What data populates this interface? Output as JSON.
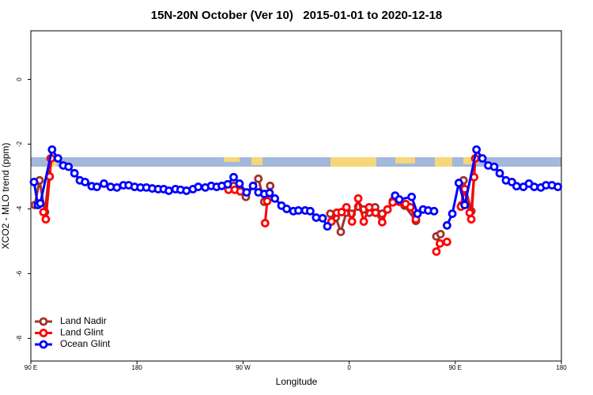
{
  "chart_data": {
    "type": "line",
    "title": "15N-20N October (Ver 10)   2015-01-01 to 2020-12-18",
    "x_label": "Longitude",
    "y_label": "XCO2 - MLO trend (ppm)",
    "xlim": [
      90,
      540
    ],
    "ylim": [
      -8.7,
      1.5
    ],
    "xticks": [
      {
        "value": 90,
        "label": "90 E"
      },
      180,
      {
        "value": 270,
        "label": "90 W"
      },
      {
        "value": 360,
        "label": "0"
      },
      {
        "value": 450,
        "label": "90 E"
      },
      {
        "value": 540,
        "label": "180"
      }
    ],
    "yticks": [
      -8,
      -6,
      -4,
      -2,
      0
    ],
    "legend": "bottom-left",
    "series": [
      {
        "name": "Land Nadir",
        "color": "#a0322d",
        "x": [
          93.4,
          97.4,
          102,
          106.8,
          null,
          262,
          267,
          272.4,
          283,
          288,
          293,
          null,
          344,
          348.6,
          352.9,
          357.5,
          362,
          367.7,
          372,
          377,
          382,
          388,
          392.5,
          397,
          407,
          416.6,
          null,
          434,
          437.5,
          null,
          455.6,
          457,
          463.6,
          467
        ],
        "values": [
          -3.88,
          -3.12,
          -4.1,
          -2.44,
          null,
          -3.29,
          -3.39,
          -3.63,
          -3.07,
          -3.78,
          -3.29,
          null,
          -4.15,
          -4.27,
          -4.71,
          -4.12,
          -4.15,
          -3.93,
          -4.02,
          -4.12,
          -3.95,
          -4.15,
          -4.02,
          -3.76,
          -3.9,
          -4.37,
          null,
          -4.85,
          -4.78,
          null,
          -3.88,
          -3.12,
          -4.07,
          -2.44
        ]
      },
      {
        "name": "Land Glint",
        "color": "#ff0000",
        "x": [
          100.7,
          102.7,
          106,
          107.4,
          null,
          257.7,
          263,
          267.7,
          null,
          288.7,
          290.5,
          null,
          345,
          349.6,
          353.6,
          357.7,
          362.4,
          367.7,
          372.4,
          377,
          382.4,
          388,
          392.5,
          397,
          402.5,
          407.9,
          412,
          416.6,
          null,
          434,
          437,
          443,
          null,
          454.8,
          458,
          462.2,
          463.6,
          466,
          467
        ],
        "values": [
          -4.1,
          -4.32,
          -3.0,
          -2.44,
          null,
          -3.41,
          -3.41,
          -3.46,
          null,
          -4.44,
          -3.76,
          null,
          -4.39,
          -4.12,
          -4.1,
          -3.95,
          -4.39,
          -3.68,
          -4.39,
          -3.95,
          -4.12,
          -4.41,
          -4.02,
          -3.8,
          -3.78,
          -3.85,
          -3.95,
          -4.32,
          null,
          -5.32,
          -5.07,
          -5.02,
          null,
          -3.93,
          -3.39,
          -4.12,
          -4.32,
          -3.02,
          -2.44
        ]
      },
      {
        "name": "Ocean Glint",
        "color": "#0000ff",
        "x": [
          92.7,
          96,
          98,
          108,
          113,
          117.5,
          122,
          127,
          131.6,
          136,
          141.6,
          146,
          152,
          157.7,
          163,
          168.5,
          173,
          178,
          183,
          188,
          193,
          198,
          202.7,
          207,
          212.7,
          217,
          222,
          227.5,
          232,
          238,
          243,
          247.6,
          252,
          257,
          262,
          267,
          273,
          278.5,
          283,
          288,
          292.5,
          297,
          302.6,
          307,
          312.7,
          317,
          322.7,
          327,
          332,
          337.5,
          341.5,
          null,
          399,
          402.5,
          413,
          418,
          422.7,
          427,
          432,
          null,
          443,
          447.5,
          453,
          458,
          468,
          473,
          478,
          483,
          487.7,
          493,
          498,
          502,
          507.8,
          512.5,
          517,
          522.6,
          527,
          532,
          537
        ],
        "values": [
          -3.17,
          -3.88,
          -3.83,
          -2.17,
          -2.44,
          -2.66,
          -2.7,
          -2.9,
          -3.12,
          -3.17,
          -3.3,
          -3.32,
          -3.22,
          -3.32,
          -3.34,
          -3.27,
          -3.27,
          -3.32,
          -3.34,
          -3.34,
          -3.37,
          -3.39,
          -3.39,
          -3.44,
          -3.39,
          -3.41,
          -3.44,
          -3.39,
          -3.32,
          -3.34,
          -3.29,
          -3.32,
          -3.29,
          -3.24,
          -3.02,
          -3.22,
          -3.49,
          -3.29,
          -3.49,
          -3.54,
          -3.51,
          -3.68,
          -3.9,
          -4.0,
          -4.07,
          -4.05,
          -4.05,
          -4.07,
          -4.27,
          -4.29,
          -4.54,
          null,
          -3.59,
          -3.71,
          -3.63,
          -4.15,
          -4.02,
          -4.05,
          -4.07,
          null,
          -4.51,
          -4.15,
          -3.2,
          -3.88,
          -2.17,
          -2.44,
          -2.66,
          -2.7,
          -2.9,
          -3.12,
          -3.17,
          -3.3,
          -3.32,
          -3.22,
          -3.32,
          -3.34,
          -3.27,
          -3.27,
          -3.32
        ]
      }
    ]
  }
}
